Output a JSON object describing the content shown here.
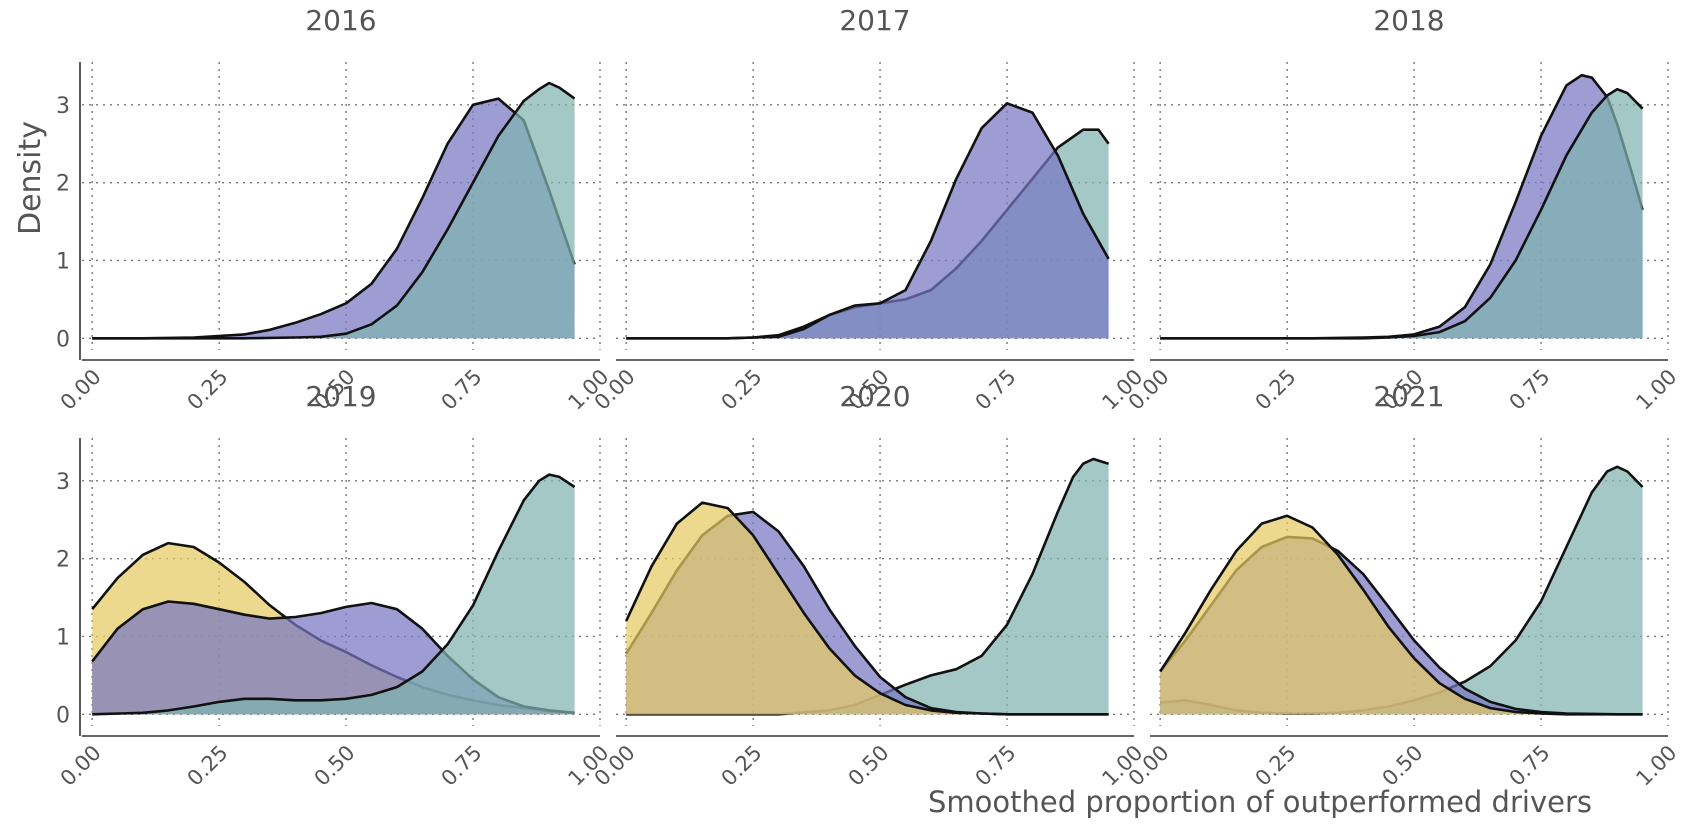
{
  "chart_data": {
    "type": "area",
    "xlabel": "Smoothed proportion of outperformed drivers",
    "ylabel": "Density",
    "xlim": [
      -0.02,
      1.0
    ],
    "ylim": [
      -0.15,
      3.55
    ],
    "x_ticks": [
      "0.00",
      "0.25",
      "0.50",
      "0.75",
      "1.00"
    ],
    "y_ticks": [
      "0",
      "1",
      "2",
      "3"
    ],
    "grid": true,
    "colors": {
      "purple": "#7777c4",
      "teal": "#7fb3b0",
      "yellow": "#e6cb62"
    },
    "panels": [
      {
        "title": "2016",
        "series": [
          {
            "color": "#7777c4",
            "x": [
              0,
              0.1,
              0.2,
              0.3,
              0.35,
              0.4,
              0.45,
              0.5,
              0.55,
              0.6,
              0.65,
              0.7,
              0.75,
              0.8,
              0.85,
              0.9,
              0.95
            ],
            "y": [
              0,
              0,
              0.01,
              0.05,
              0.11,
              0.2,
              0.31,
              0.45,
              0.7,
              1.15,
              1.8,
              2.5,
              3.0,
              3.08,
              2.8,
              1.9,
              0.95
            ]
          },
          {
            "color": "#7fb3b0",
            "x": [
              0,
              0.2,
              0.3,
              0.4,
              0.45,
              0.5,
              0.55,
              0.6,
              0.65,
              0.7,
              0.75,
              0.8,
              0.85,
              0.88,
              0.9,
              0.92,
              0.95
            ],
            "y": [
              0,
              0,
              0,
              0.01,
              0.02,
              0.06,
              0.18,
              0.42,
              0.85,
              1.4,
              2.0,
              2.6,
              3.05,
              3.2,
              3.28,
              3.22,
              3.08
            ]
          }
        ]
      },
      {
        "title": "2017",
        "series": [
          {
            "color": "#7fb3b0",
            "x": [
              0,
              0.2,
              0.25,
              0.3,
              0.35,
              0.4,
              0.45,
              0.5,
              0.55,
              0.6,
              0.65,
              0.7,
              0.75,
              0.8,
              0.85,
              0.9,
              0.93,
              0.95
            ],
            "y": [
              0,
              0,
              0.01,
              0.04,
              0.15,
              0.3,
              0.4,
              0.45,
              0.5,
              0.62,
              0.9,
              1.25,
              1.65,
              2.05,
              2.45,
              2.68,
              2.68,
              2.5
            ]
          },
          {
            "color": "#7777c4",
            "x": [
              0,
              0.2,
              0.3,
              0.35,
              0.4,
              0.45,
              0.5,
              0.55,
              0.6,
              0.65,
              0.7,
              0.75,
              0.8,
              0.85,
              0.9,
              0.95
            ],
            "y": [
              0,
              0,
              0.02,
              0.12,
              0.3,
              0.42,
              0.45,
              0.62,
              1.25,
              2.05,
              2.7,
              3.02,
              2.9,
              2.35,
              1.6,
              1.02
            ]
          }
        ]
      },
      {
        "title": "2018",
        "series": [
          {
            "color": "#7777c4",
            "x": [
              0,
              0.3,
              0.4,
              0.45,
              0.5,
              0.55,
              0.6,
              0.65,
              0.7,
              0.75,
              0.8,
              0.83,
              0.85,
              0.88,
              0.9,
              0.93,
              0.95
            ],
            "y": [
              0,
              0,
              0.01,
              0.02,
              0.05,
              0.15,
              0.4,
              0.95,
              1.75,
              2.6,
              3.25,
              3.38,
              3.35,
              3.1,
              2.75,
              2.1,
              1.65
            ]
          },
          {
            "color": "#7fb3b0",
            "x": [
              0,
              0.3,
              0.4,
              0.45,
              0.5,
              0.55,
              0.6,
              0.65,
              0.7,
              0.75,
              0.8,
              0.85,
              0.88,
              0.9,
              0.92,
              0.95
            ],
            "y": [
              0,
              0,
              0,
              0.01,
              0.03,
              0.08,
              0.22,
              0.52,
              1.0,
              1.65,
              2.35,
              2.9,
              3.12,
              3.2,
              3.15,
              2.95
            ]
          }
        ]
      },
      {
        "title": "2019",
        "series": [
          {
            "color": "#e6cb62",
            "x": [
              0,
              0.05,
              0.1,
              0.15,
              0.2,
              0.25,
              0.3,
              0.35,
              0.4,
              0.45,
              0.5,
              0.55,
              0.6,
              0.65,
              0.7,
              0.75,
              0.8,
              0.85,
              0.9,
              0.95
            ],
            "y": [
              1.35,
              1.75,
              2.05,
              2.2,
              2.15,
              1.95,
              1.7,
              1.4,
              1.15,
              0.95,
              0.8,
              0.63,
              0.48,
              0.35,
              0.25,
              0.18,
              0.12,
              0.08,
              0.04,
              0.02
            ]
          },
          {
            "color": "#7777c4",
            "x": [
              0,
              0.05,
              0.1,
              0.15,
              0.2,
              0.25,
              0.3,
              0.35,
              0.4,
              0.45,
              0.5,
              0.55,
              0.6,
              0.65,
              0.7,
              0.75,
              0.8,
              0.85,
              0.9,
              0.95
            ],
            "y": [
              0.68,
              1.1,
              1.35,
              1.45,
              1.42,
              1.35,
              1.28,
              1.23,
              1.25,
              1.3,
              1.38,
              1.43,
              1.35,
              1.1,
              0.75,
              0.45,
              0.22,
              0.1,
              0.05,
              0.02
            ]
          },
          {
            "color": "#7fb3b0",
            "x": [
              0,
              0.1,
              0.15,
              0.2,
              0.25,
              0.3,
              0.35,
              0.4,
              0.45,
              0.5,
              0.55,
              0.6,
              0.65,
              0.7,
              0.75,
              0.8,
              0.85,
              0.88,
              0.9,
              0.92,
              0.95
            ],
            "y": [
              0,
              0.02,
              0.05,
              0.1,
              0.16,
              0.2,
              0.2,
              0.18,
              0.18,
              0.2,
              0.25,
              0.35,
              0.55,
              0.9,
              1.4,
              2.1,
              2.75,
              3.0,
              3.08,
              3.05,
              2.92
            ]
          }
        ]
      },
      {
        "title": "2020",
        "series": [
          {
            "color": "#7fb3b0",
            "x": [
              0,
              0.3,
              0.4,
              0.45,
              0.5,
              0.55,
              0.6,
              0.65,
              0.7,
              0.75,
              0.8,
              0.85,
              0.88,
              0.9,
              0.92,
              0.95
            ],
            "y": [
              0,
              0,
              0.05,
              0.12,
              0.25,
              0.38,
              0.5,
              0.58,
              0.75,
              1.15,
              1.8,
              2.6,
              3.05,
              3.22,
              3.28,
              3.22
            ]
          },
          {
            "color": "#7777c4",
            "x": [
              0,
              0.05,
              0.1,
              0.15,
              0.2,
              0.25,
              0.3,
              0.35,
              0.4,
              0.45,
              0.5,
              0.55,
              0.6,
              0.65,
              0.7,
              0.75,
              0.8,
              0.9,
              0.95
            ],
            "y": [
              0.78,
              1.3,
              1.85,
              2.3,
              2.55,
              2.6,
              2.35,
              1.9,
              1.35,
              0.88,
              0.48,
              0.22,
              0.08,
              0.03,
              0.01,
              0,
              0,
              0,
              0
            ]
          },
          {
            "color": "#e6cb62",
            "x": [
              0,
              0.05,
              0.1,
              0.15,
              0.2,
              0.25,
              0.3,
              0.35,
              0.4,
              0.45,
              0.5,
              0.55,
              0.6,
              0.65,
              0.7,
              0.75,
              0.8,
              0.9,
              0.95
            ],
            "y": [
              1.2,
              1.9,
              2.45,
              2.72,
              2.65,
              2.3,
              1.8,
              1.3,
              0.85,
              0.5,
              0.27,
              0.12,
              0.05,
              0.02,
              0.01,
              0,
              0,
              0,
              0
            ]
          }
        ]
      },
      {
        "title": "2021",
        "series": [
          {
            "color": "#7fb3b0",
            "x": [
              0,
              0.05,
              0.1,
              0.15,
              0.2,
              0.25,
              0.3,
              0.35,
              0.4,
              0.45,
              0.5,
              0.55,
              0.6,
              0.65,
              0.7,
              0.75,
              0.8,
              0.85,
              0.88,
              0.9,
              0.92,
              0.95
            ],
            "y": [
              0.15,
              0.18,
              0.12,
              0.05,
              0.02,
              0.01,
              0.01,
              0.02,
              0.05,
              0.1,
              0.18,
              0.28,
              0.42,
              0.62,
              0.95,
              1.45,
              2.15,
              2.85,
              3.12,
              3.18,
              3.12,
              2.92
            ]
          },
          {
            "color": "#7777c4",
            "x": [
              0,
              0.05,
              0.1,
              0.15,
              0.2,
              0.25,
              0.3,
              0.35,
              0.4,
              0.45,
              0.5,
              0.55,
              0.6,
              0.65,
              0.7,
              0.75,
              0.8,
              0.9,
              0.95
            ],
            "y": [
              0.55,
              0.95,
              1.4,
              1.85,
              2.15,
              2.28,
              2.26,
              2.1,
              1.8,
              1.38,
              0.95,
              0.6,
              0.33,
              0.16,
              0.07,
              0.03,
              0.01,
              0,
              0
            ]
          },
          {
            "color": "#e6cb62",
            "x": [
              0,
              0.05,
              0.1,
              0.15,
              0.2,
              0.25,
              0.3,
              0.35,
              0.4,
              0.45,
              0.5,
              0.55,
              0.6,
              0.65,
              0.7,
              0.75,
              0.8,
              0.9,
              0.95
            ],
            "y": [
              0.55,
              1.05,
              1.6,
              2.1,
              2.45,
              2.55,
              2.4,
              2.05,
              1.6,
              1.12,
              0.72,
              0.4,
              0.2,
              0.08,
              0.03,
              0.01,
              0,
              0,
              0
            ]
          }
        ]
      }
    ]
  }
}
